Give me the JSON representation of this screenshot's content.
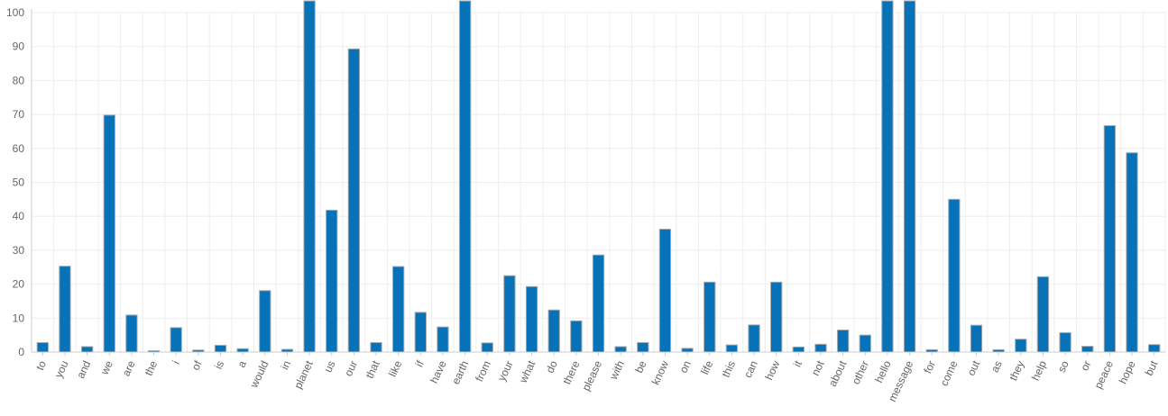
{
  "chart_data": {
    "type": "bar",
    "categories": [
      "to",
      "you",
      "and",
      "we",
      "are",
      "the",
      "i",
      "of",
      "is",
      "a",
      "would",
      "in",
      "planet",
      "us",
      "our",
      "that",
      "like",
      "if",
      "have",
      "earth",
      "from",
      "your",
      "what",
      "do",
      "there",
      "please",
      "with",
      "be",
      "know",
      "on",
      "life",
      "this",
      "can",
      "how",
      "it",
      "not",
      "about",
      "other",
      "hello",
      "message",
      "for",
      "come",
      "out",
      "as",
      "they",
      "help",
      "so",
      "or",
      "peace",
      "hope",
      "but"
    ],
    "values": [
      2.8,
      25.3,
      1.6,
      69.8,
      10.9,
      0.4,
      7.2,
      0.6,
      2.0,
      1.0,
      18.1,
      0.8,
      105,
      41.8,
      89.3,
      2.8,
      25.2,
      11.7,
      7.4,
      105,
      2.7,
      22.5,
      19.3,
      12.4,
      9.2,
      28.6,
      1.6,
      2.8,
      36.2,
      1.1,
      20.6,
      2.1,
      8.0,
      20.6,
      1.5,
      2.3,
      6.5,
      5.0,
      105,
      105,
      0.7,
      45.0,
      7.9,
      0.7,
      3.8,
      22.2,
      5.7,
      1.7,
      66.7,
      58.7,
      2.2
    ],
    "ylim": [
      0,
      100
    ],
    "y_ticks": [
      "0",
      "10",
      "20",
      "30",
      "40",
      "50",
      "60",
      "70",
      "80",
      "90",
      "100"
    ],
    "grid": true,
    "bar_color": "#0772b7",
    "bar_border_color": "#a8aaad",
    "grid_color": "#eeeeee",
    "axis_color": "#cccccc",
    "label_color": "#666666"
  }
}
